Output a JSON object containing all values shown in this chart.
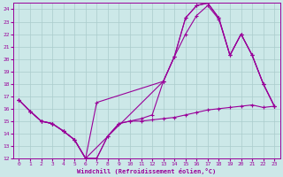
{
  "background_color": "#cce8e8",
  "grid_color": "#aacccc",
  "line_color": "#990099",
  "xlabel": "Windchill (Refroidissement éolien,°C)",
  "xlim": [
    -0.5,
    23.5
  ],
  "ylim": [
    12,
    24.5
  ],
  "yticks": [
    12,
    13,
    14,
    15,
    16,
    17,
    18,
    19,
    20,
    21,
    22,
    23,
    24
  ],
  "xticks": [
    0,
    1,
    2,
    3,
    4,
    5,
    6,
    7,
    8,
    9,
    10,
    11,
    12,
    13,
    14,
    15,
    16,
    17,
    18,
    19,
    20,
    21,
    22,
    23
  ],
  "line1_x": [
    0,
    1,
    2,
    3,
    4,
    5,
    6,
    7,
    8,
    9,
    10,
    11,
    12,
    13,
    14,
    15,
    16,
    17,
    18,
    19,
    20,
    21,
    22,
    23
  ],
  "line1_y": [
    16.7,
    15.8,
    15.0,
    14.8,
    14.2,
    13.5,
    12.0,
    12.0,
    13.8,
    14.8,
    15.0,
    15.0,
    15.1,
    15.2,
    15.3,
    15.5,
    15.7,
    15.9,
    16.0,
    16.1,
    16.2,
    16.3,
    16.1,
    16.2
  ],
  "line2_x": [
    0,
    1,
    2,
    3,
    4,
    5,
    6,
    7,
    13,
    14,
    15,
    16,
    17,
    18,
    19,
    20,
    21,
    22,
    23
  ],
  "line2_y": [
    16.7,
    15.8,
    15.0,
    14.8,
    14.2,
    13.5,
    12.0,
    16.5,
    18.2,
    20.2,
    22.0,
    23.5,
    24.3,
    23.2,
    20.3,
    22.0,
    20.3,
    18.0,
    16.2
  ],
  "line3_x": [
    0,
    1,
    2,
    3,
    4,
    5,
    6,
    13,
    14,
    15,
    16,
    17,
    18,
    19,
    20,
    21,
    22,
    23
  ],
  "line3_y": [
    16.7,
    15.8,
    15.0,
    14.8,
    14.2,
    13.5,
    12.0,
    18.2,
    20.2,
    23.3,
    24.3,
    24.5,
    23.3,
    20.3,
    22.0,
    20.3,
    18.0,
    16.2
  ],
  "line4_x": [
    0,
    1,
    2,
    3,
    4,
    5,
    6,
    7,
    8,
    9,
    10,
    11,
    12,
    13,
    14,
    15,
    16,
    17,
    18,
    19,
    20,
    21,
    22,
    23
  ],
  "line4_y": [
    16.7,
    15.8,
    15.0,
    14.8,
    14.2,
    13.5,
    12.0,
    12.0,
    13.8,
    14.8,
    15.0,
    15.2,
    15.5,
    18.2,
    20.2,
    23.3,
    24.3,
    24.5,
    23.3,
    20.3,
    22.0,
    20.3,
    18.0,
    16.2
  ]
}
